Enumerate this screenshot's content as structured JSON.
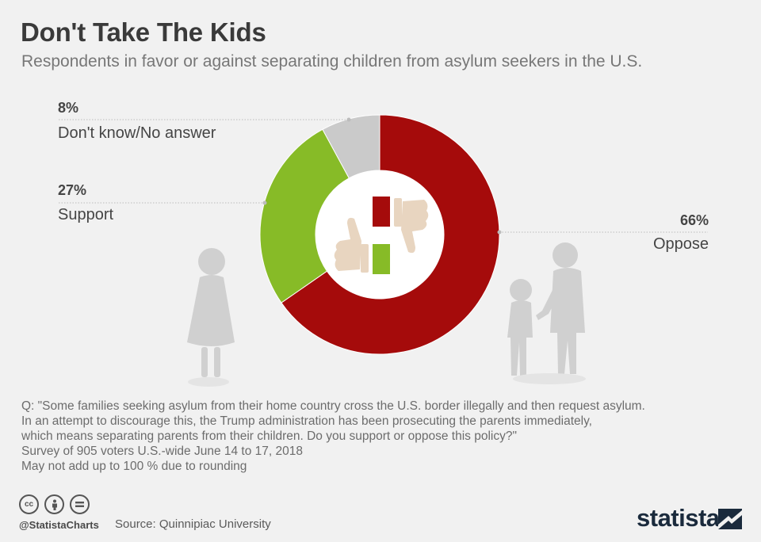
{
  "header": {
    "title": "Don't Take The Kids",
    "subtitle": "Respondents in favor or against separating children from asylum seekers in the U.S."
  },
  "chart_data": {
    "type": "pie",
    "variant": "donut",
    "title": "Don't Take The Kids",
    "categories": [
      "Oppose",
      "Support",
      "Don't know/No answer"
    ],
    "values": [
      66,
      27,
      8
    ],
    "value_labels": [
      "66%",
      "27%",
      "8%"
    ],
    "unit": "%",
    "colors": [
      "#a50b0b",
      "#87bb27",
      "#cacaca"
    ]
  },
  "notes": {
    "lines": [
      "Q: \"Some families seeking asylum from their home country cross the U.S. border illegally and then request asylum.",
      "In an attempt to discourage this, the Trump administration has been prosecuting the parents immediately,",
      "which means separating parents from their children. Do you support or oppose this policy?\"",
      "Survey of 905 voters U.S.-wide June 14 to 17, 2018",
      "May not add up to 100 % due to rounding"
    ]
  },
  "footer": {
    "handle": "@StatistaCharts",
    "source": "Source: Quinnipiac University",
    "brand": "statista",
    "license_icons": [
      "cc-icon",
      "attribution-icon",
      "no-derivatives-icon"
    ]
  }
}
